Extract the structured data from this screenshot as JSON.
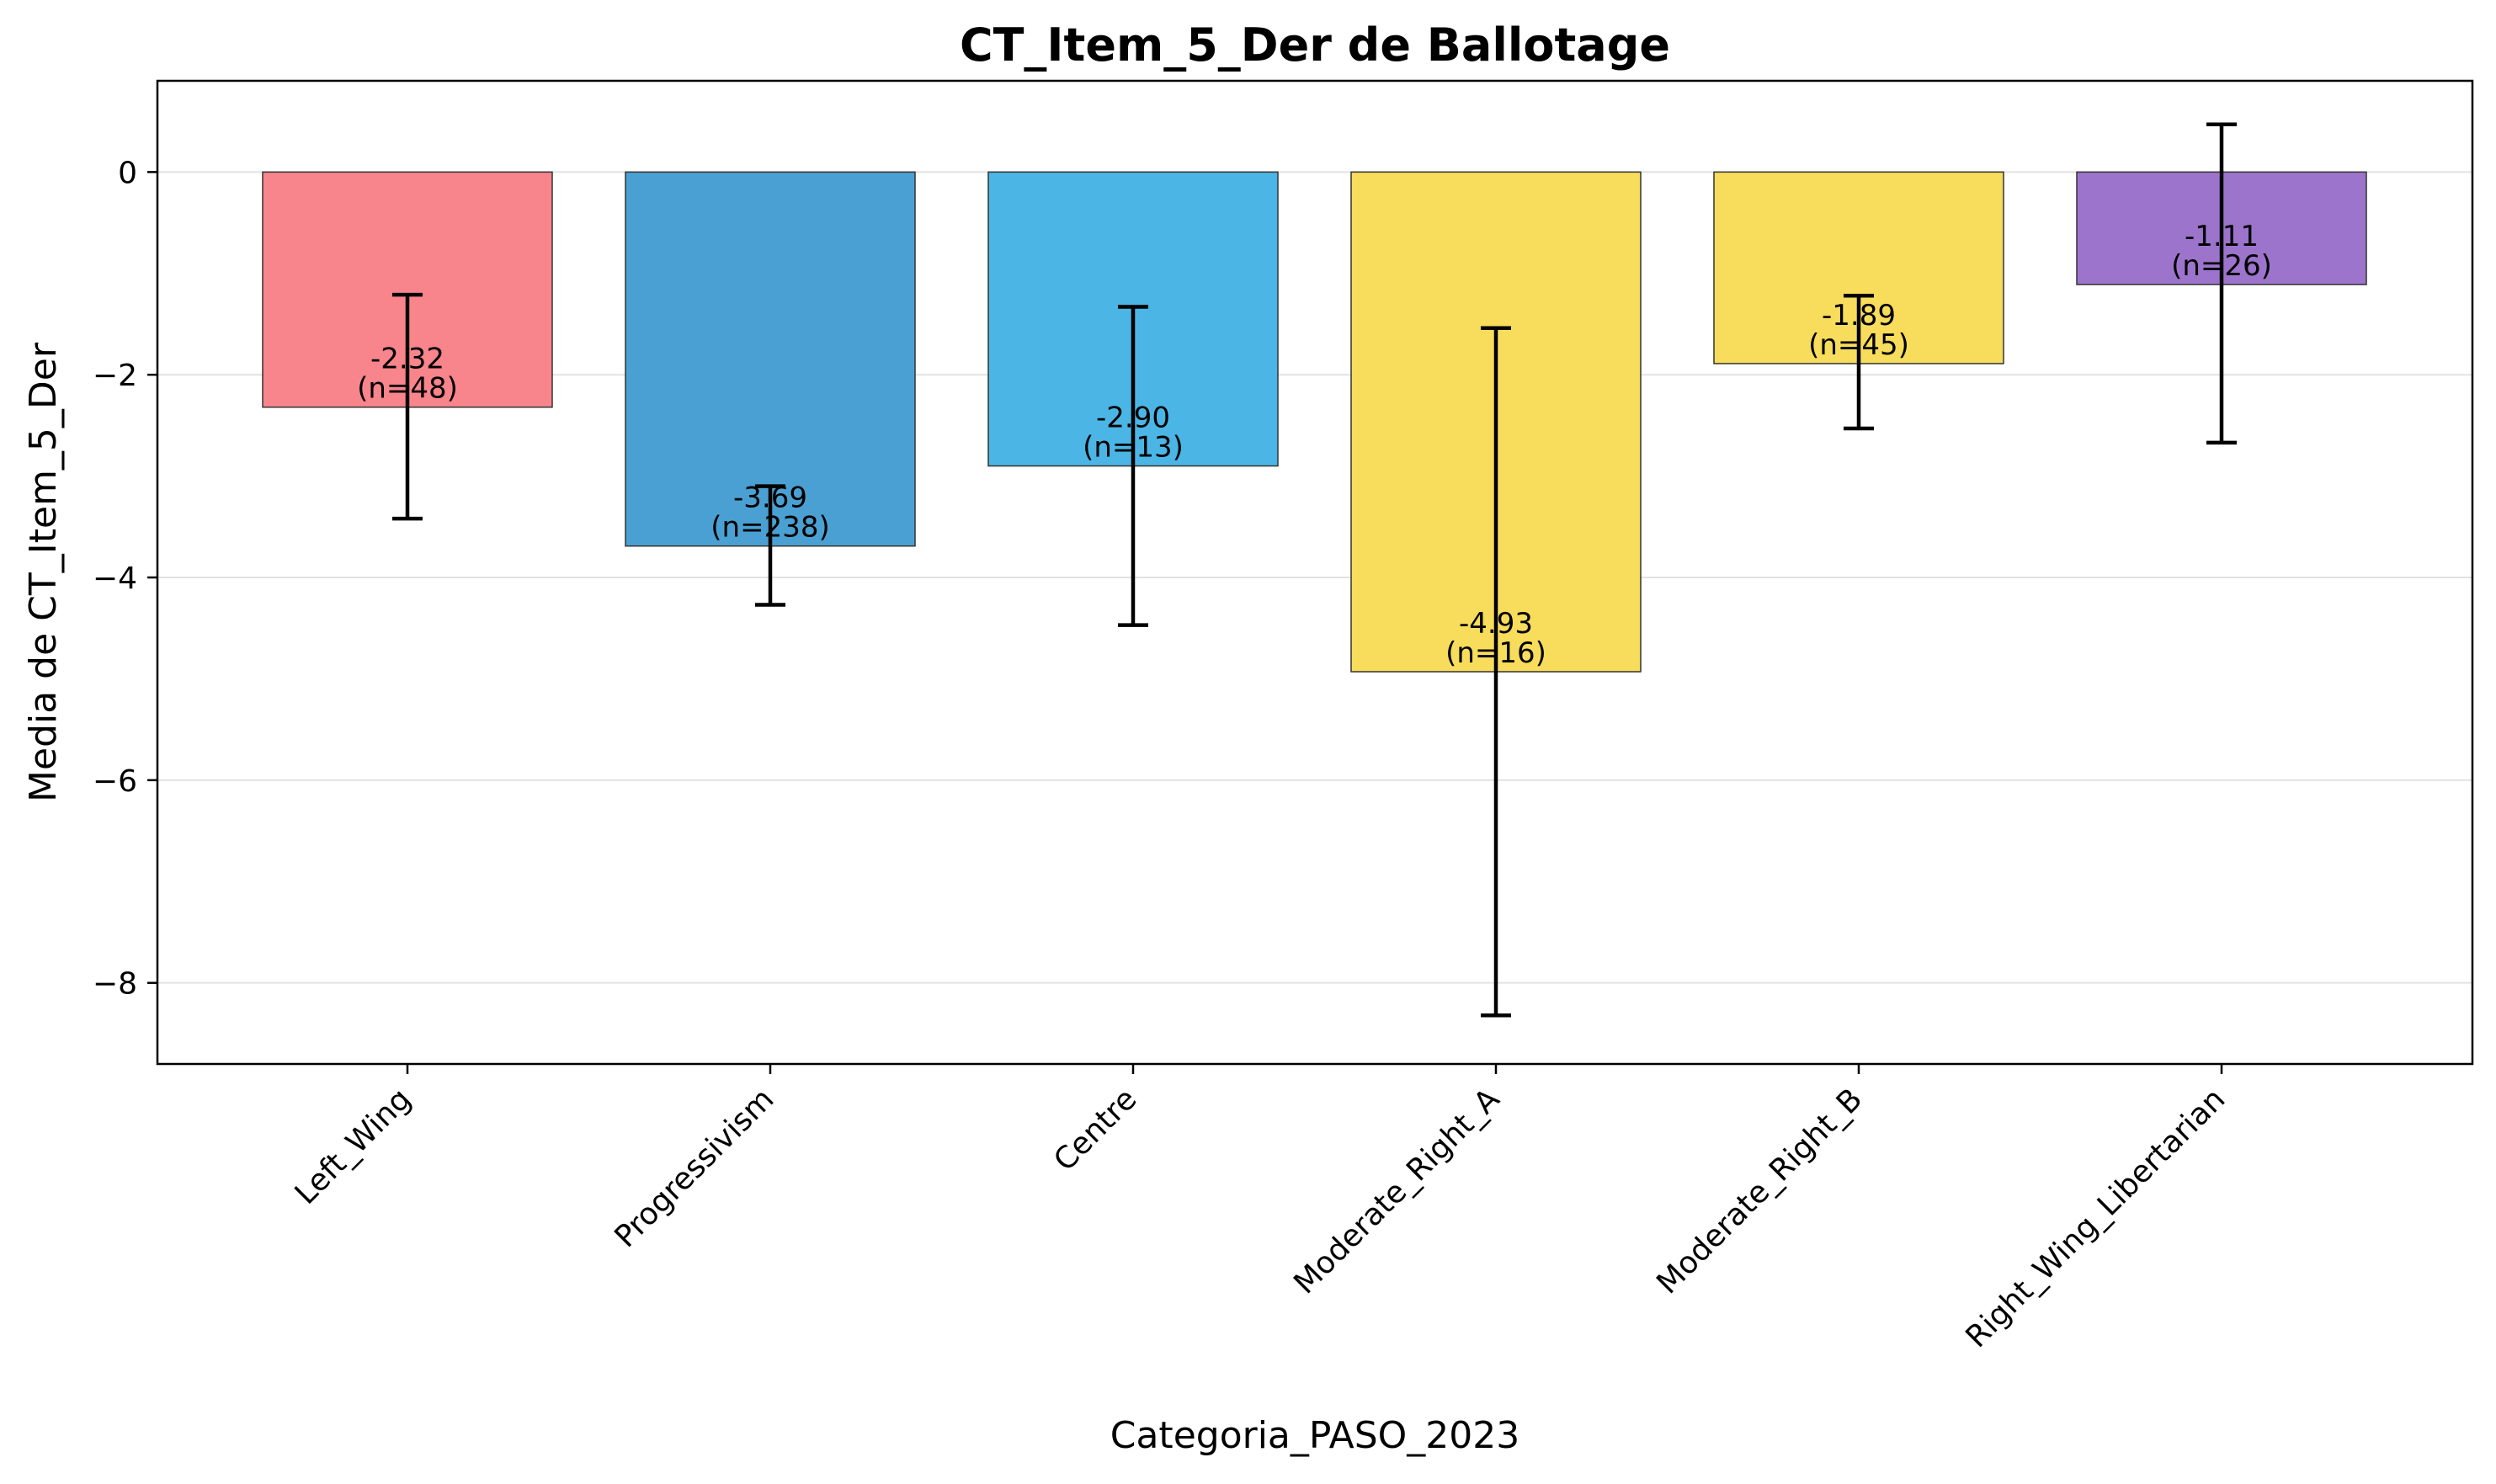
{
  "chart_data": {
    "type": "bar",
    "title": "CT_Item_5_Der de Ballotage",
    "xlabel": "Categoria_PASO_2023",
    "ylabel": "Media de CT_Item_5_Der",
    "ylim": [
      -8.8,
      0.9
    ],
    "yticks": [
      0,
      -2,
      -4,
      -6,
      -8
    ],
    "ytick_labels": [
      "0",
      "−2",
      "−4",
      "−6",
      "−8"
    ],
    "grid": "horizontal",
    "categories": [
      "Left_Wing",
      "Progressivism",
      "Centre",
      "Moderate_Right_A",
      "Moderate_Right_B",
      "Right_Wing_Libertarian"
    ],
    "values": [
      -2.32,
      -3.69,
      -2.9,
      -4.93,
      -1.89,
      -1.11
    ],
    "error_low": [
      -3.42,
      -4.27,
      -4.47,
      -8.32,
      -2.53,
      -2.67
    ],
    "error_high": [
      -1.21,
      -3.1,
      -1.33,
      -1.54,
      -1.22,
      0.47
    ],
    "colors": [
      "#f8848c",
      "#4aa0d2",
      "#4bb6e6",
      "#f8dc5c",
      "#f8dc5c",
      "#9c74cc"
    ],
    "labels": [
      [
        "-2.32",
        "(n=48)"
      ],
      [
        "-3.69",
        "(n=238)"
      ],
      [
        "-2.90",
        "(n=13)"
      ],
      [
        "-4.93",
        "(n=16)"
      ],
      [
        "-1.89",
        "(n=45)"
      ],
      [
        "-1.11",
        "(n=26)"
      ]
    ]
  }
}
